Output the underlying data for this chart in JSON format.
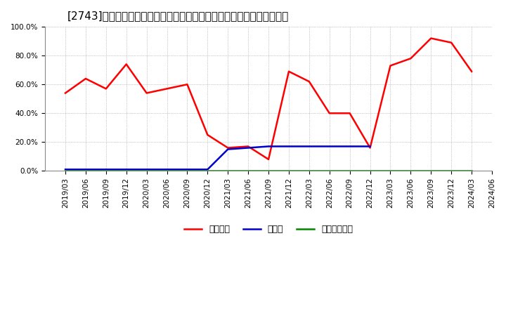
{
  "title": "[2743]　自己資本、のれん、繰延税金資産の総資産に対する比率の推移",
  "x_labels": [
    "2019/03",
    "2019/06",
    "2019/09",
    "2019/12",
    "2020/03",
    "2020/06",
    "2020/09",
    "2020/12",
    "2021/03",
    "2021/06",
    "2021/09",
    "2021/12",
    "2022/03",
    "2022/06",
    "2022/09",
    "2022/12",
    "2023/03",
    "2023/06",
    "2023/09",
    "2023/12",
    "2024/03",
    "2024/06"
  ],
  "jiko_shihon": [
    54,
    64,
    57,
    74,
    54,
    57,
    60,
    25,
    16,
    17,
    8,
    69,
    62,
    40,
    40,
    16,
    73,
    78,
    92,
    89,
    69,
    null
  ],
  "noren": [
    1,
    1,
    1,
    1,
    1,
    1,
    1,
    1,
    15,
    16,
    17,
    17,
    17,
    17,
    17,
    17,
    null,
    null,
    null,
    null,
    null,
    null
  ],
  "kurinobe_zeikinsisan": [
    0,
    0,
    0,
    0,
    0,
    0,
    0,
    0,
    0,
    0,
    0,
    0,
    0,
    0,
    0,
    0,
    0,
    0,
    0,
    0,
    0,
    null
  ],
  "line_colors": {
    "jiko_shihon": "#ff0000",
    "noren": "#0000cc",
    "kurinobe_zeikinsisan": "#008800"
  },
  "legend_labels": {
    "jiko_shihon": "自己資本",
    "noren": "のれん",
    "kurinobe_zeikinsisan": "繰延税金資産"
  },
  "ylim": [
    0,
    100
  ],
  "yticks": [
    0,
    20,
    40,
    60,
    80,
    100
  ],
  "ytick_labels": [
    "0.0%",
    "20.0%",
    "40.0%",
    "60.0%",
    "80.0%",
    "100.0%"
  ],
  "background_color": "#ffffff",
  "plot_bg_color": "#ffffff",
  "grid_color": "#999999",
  "title_fontsize": 11,
  "tick_fontsize": 7.5,
  "legend_fontsize": 9
}
